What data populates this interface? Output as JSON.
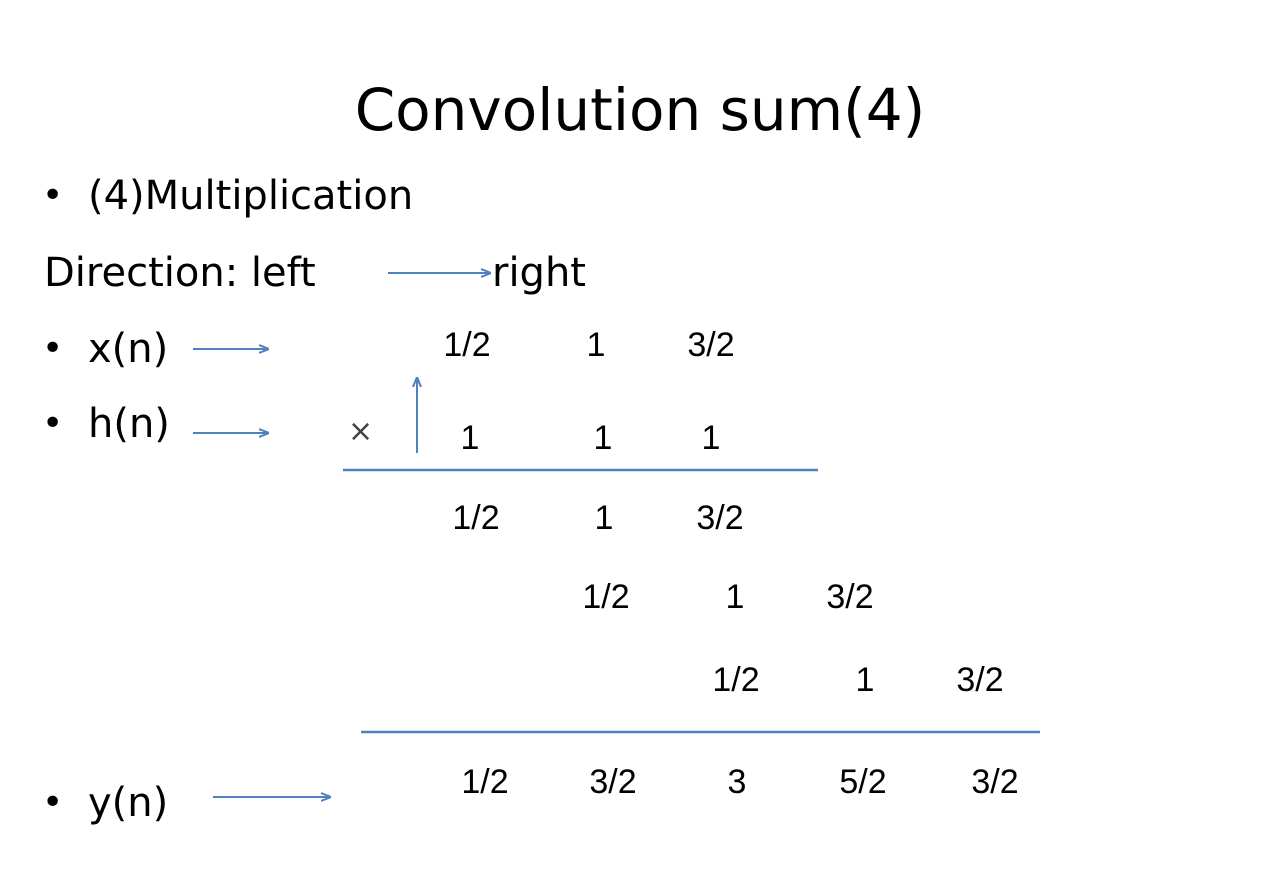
{
  "slide": {
    "title": "Convolution sum(4)",
    "bullet_multiplication": "(4)Multiplication",
    "direction_prefix": "Direction: left",
    "direction_suffix": "right",
    "label_x": "x(n)",
    "label_h": "h(n)",
    "label_y": "y(n)",
    "bullet_symbol": "•",
    "times_symbol": "×"
  },
  "colors": {
    "arrow": "#4f81bd",
    "text": "#000000"
  },
  "computation": {
    "x_values": [
      "1/2",
      "1",
      "3/2"
    ],
    "h_values": [
      "1",
      "1",
      "1"
    ],
    "partial_rows": [
      [
        "1/2",
        "1",
        "3/2"
      ],
      [
        "1/2",
        "1",
        "3/2"
      ],
      [
        "1/2",
        "1",
        "3/2"
      ]
    ],
    "y_values": [
      "1/2",
      "3/2",
      "3",
      "5/2",
      "3/2"
    ]
  }
}
